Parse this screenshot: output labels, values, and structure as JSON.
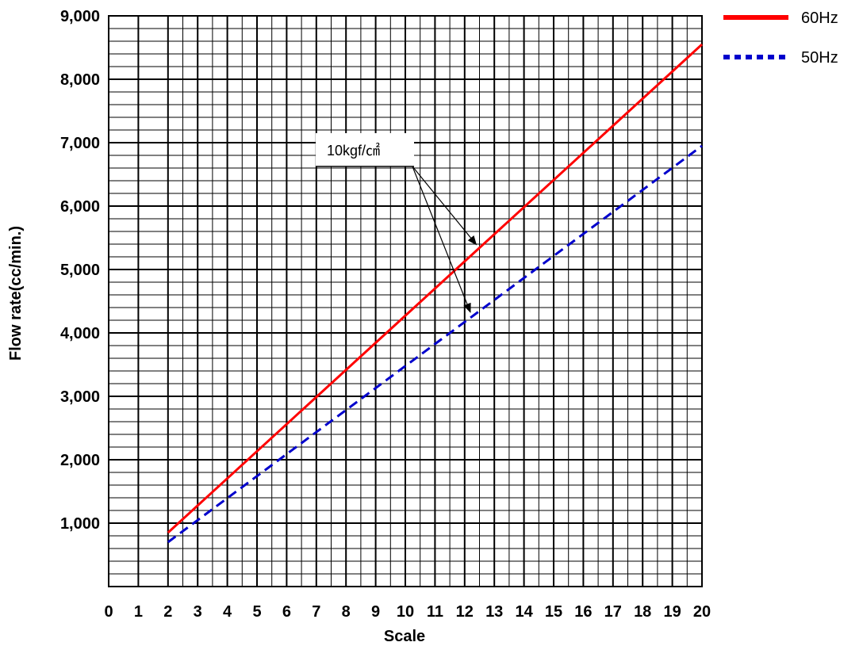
{
  "chart_data": {
    "type": "line",
    "xlabel": "Scale",
    "ylabel": "Flow rate(cc/min.)",
    "xlim": [
      0,
      20
    ],
    "ylim": [
      0,
      9000
    ],
    "x_ticks": [
      "0",
      "1",
      "2",
      "3",
      "4",
      "5",
      "6",
      "7",
      "8",
      "9",
      "10",
      "11",
      "12",
      "13",
      "14",
      "15",
      "16",
      "17",
      "18",
      "19",
      "20"
    ],
    "y_ticks": [
      "1,000",
      "2,000",
      "3,000",
      "4,000",
      "5,000",
      "6,000",
      "7,000",
      "8,000",
      "9,000"
    ],
    "grid": true,
    "legend_position": "right of plot, top",
    "series": [
      {
        "name": "60Hz",
        "color": "#ff0000",
        "style": "solid",
        "x": [
          2,
          20
        ],
        "y": [
          850,
          8550
        ]
      },
      {
        "name": "50Hz",
        "color": "#0000cc",
        "style": "dashed",
        "x": [
          2,
          20
        ],
        "y": [
          700,
          6950
        ]
      }
    ],
    "annotation": {
      "text": "10kgf/㎠",
      "points_to": [
        "60Hz",
        "50Hz"
      ],
      "target_x": [
        12.5,
        12.3
      ]
    }
  }
}
